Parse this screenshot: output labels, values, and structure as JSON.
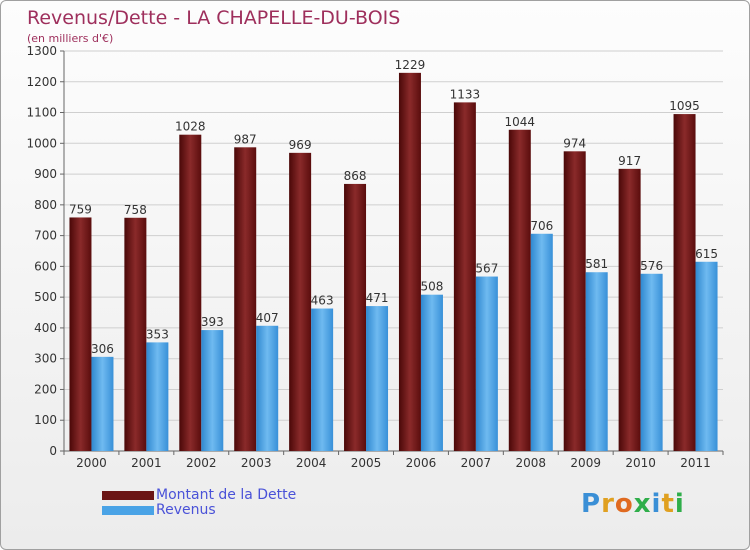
{
  "header": {
    "title": "Revenus/Dette - LA CHAPELLE-DU-BOIS",
    "subtitle": "(en milliers d'€)"
  },
  "colors": {
    "dette": "#6b1515",
    "revenus": "#4aa3e6",
    "title": "#9e2f5c",
    "legend_text": "#4a52d8",
    "grid": "#cfcfcf"
  },
  "chart_data": {
    "type": "bar",
    "categories": [
      "2000",
      "2001",
      "2002",
      "2003",
      "2004",
      "2005",
      "2006",
      "2007",
      "2008",
      "2009",
      "2010",
      "2011"
    ],
    "series": [
      {
        "name": "Montant de la Dette",
        "values": [
          759,
          758,
          1028,
          987,
          969,
          868,
          1229,
          1133,
          1044,
          974,
          917,
          1095
        ]
      },
      {
        "name": "Revenus",
        "values": [
          306,
          353,
          393,
          407,
          463,
          471,
          508,
          567,
          706,
          581,
          576,
          615
        ]
      }
    ],
    "yticks": [
      0,
      100,
      200,
      300,
      400,
      500,
      600,
      700,
      800,
      900,
      1000,
      1100,
      1200,
      1300
    ],
    "ylim": [
      0,
      1300
    ],
    "grid": true,
    "legend_position": "bottom-left"
  },
  "legend": {
    "items": [
      "Montant de la Dette",
      "Revenus"
    ]
  },
  "logo": {
    "letters": [
      "P",
      "r",
      "o",
      "x",
      "i",
      "t",
      "i"
    ],
    "colors": [
      "#3a8fd6",
      "#e0a020",
      "#e06a20",
      "#2fae4a",
      "#3a8fd6",
      "#e0a020",
      "#2fae4a"
    ]
  }
}
